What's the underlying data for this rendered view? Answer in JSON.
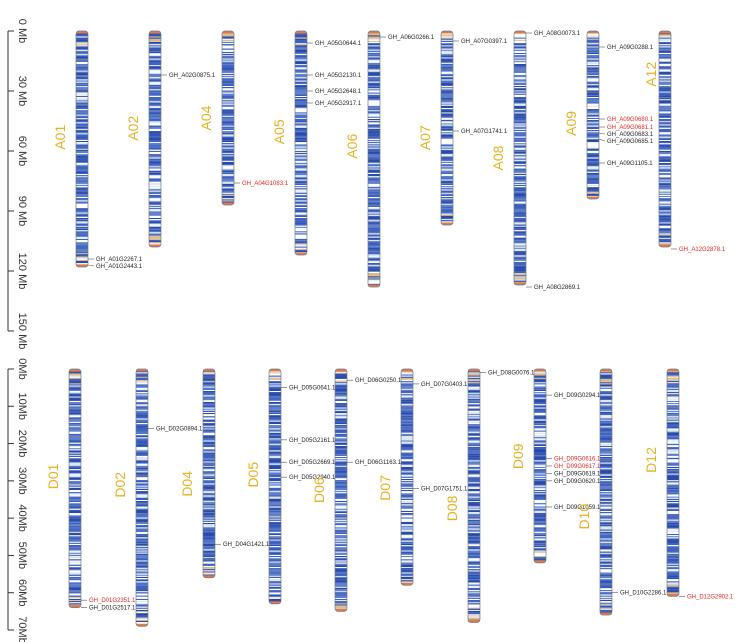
{
  "colors": {
    "label": "#e8b021",
    "highlight": "#e8231d",
    "normal": "#222222",
    "axis": "#333333"
  },
  "top_panel": {
    "axis": {
      "unit": "Mb",
      "ticks": [
        0,
        30,
        60,
        90,
        120,
        150
      ],
      "labels": [
        "0 Mb",
        "30 Mb",
        "60 Mb",
        "90 Mb",
        "120 Mb",
        "150 Mb"
      ]
    },
    "chromosomes": [
      {
        "name": "A01",
        "length": 118,
        "genes": [
          {
            "id": "GH_A01G2267.1",
            "pos": 114,
            "hi": false
          },
          {
            "id": "GH_A01G2443.1",
            "pos": 117,
            "hi": false
          }
        ]
      },
      {
        "name": "A02",
        "length": 108,
        "genes": [
          {
            "id": "GH_A02G0875.1",
            "pos": 22,
            "hi": false
          }
        ]
      },
      {
        "name": "A04",
        "length": 87,
        "genes": [
          {
            "id": "GH_A04G1083.1",
            "pos": 76,
            "hi": true
          }
        ]
      },
      {
        "name": "A05",
        "length": 112,
        "genes": [
          {
            "id": "GH_A05G0644.1",
            "pos": 6,
            "hi": false
          },
          {
            "id": "GH_A05G2130.1",
            "pos": 22,
            "hi": false
          },
          {
            "id": "GH_A05G2648.1",
            "pos": 30,
            "hi": false
          },
          {
            "id": "GH_A05G2917.1",
            "pos": 36,
            "hi": false
          }
        ]
      },
      {
        "name": "A06",
        "length": 128,
        "genes": [
          {
            "id": "GH_A06G0266.1",
            "pos": 3,
            "hi": false
          }
        ]
      },
      {
        "name": "A07",
        "length": 97,
        "genes": [
          {
            "id": "GH_A07G0397.1",
            "pos": 5,
            "hi": false
          },
          {
            "id": "GH_A07G1741.1",
            "pos": 50,
            "hi": false
          }
        ]
      },
      {
        "name": "A08",
        "length": 127,
        "genes": [
          {
            "id": "GH_A08G0073.1",
            "pos": 1,
            "hi": false
          },
          {
            "id": "GH_A08G2869.1",
            "pos": 128,
            "hi": false
          }
        ]
      },
      {
        "name": "A09",
        "length": 84,
        "genes": [
          {
            "id": "GH_A09G0288.1",
            "pos": 8,
            "hi": false
          },
          {
            "id": "GH_A09G0680.1",
            "pos": 44,
            "hi": true
          },
          {
            "id": "GH_A09G0681.1",
            "pos": 48,
            "hi": true
          },
          {
            "id": "GH_A09G0683.1",
            "pos": 51,
            "hi": false
          },
          {
            "id": "GH_A09G0685.1",
            "pos": 54,
            "hi": false
          },
          {
            "id": "GH_A09G1105.1",
            "pos": 66,
            "hi": false
          }
        ]
      },
      {
        "name": "A12",
        "length": 108,
        "genes": [
          {
            "id": "GH_A12G2878.1",
            "pos": 109,
            "hi": true
          }
        ]
      }
    ]
  },
  "bottom_panel": {
    "axis": {
      "unit": "Mb",
      "ticks": [
        0,
        10,
        20,
        30,
        40,
        50,
        60,
        70
      ],
      "labels": [
        "0Mb",
        "10Mb",
        "20Mb",
        "30Mb",
        "40Mb",
        "50Mb",
        "60Mb",
        "70Mb"
      ]
    },
    "chromosomes": [
      {
        "name": "D01",
        "length": 64,
        "genes": [
          {
            "id": "GH_D01G2351.1",
            "pos": 62,
            "hi": true
          },
          {
            "id": "GH_D01G2517.1",
            "pos": 64,
            "hi": false
          }
        ]
      },
      {
        "name": "D02",
        "length": 69,
        "genes": [
          {
            "id": "GH_D02G0894.1",
            "pos": 16,
            "hi": false
          }
        ]
      },
      {
        "name": "D04",
        "length": 56,
        "genes": [
          {
            "id": "GH_D04G1421.1",
            "pos": 47,
            "hi": false
          }
        ]
      },
      {
        "name": "D05",
        "length": 63,
        "genes": [
          {
            "id": "GH_D05G0641.1",
            "pos": 5,
            "hi": false
          },
          {
            "id": "GH_D05G2161.1",
            "pos": 19,
            "hi": false
          },
          {
            "id": "GH_D05G2669.1",
            "pos": 25,
            "hi": false
          },
          {
            "id": "GH_D05G2940.1",
            "pos": 29,
            "hi": false
          }
        ]
      },
      {
        "name": "D06",
        "length": 65,
        "genes": [
          {
            "id": "GH_D06G0250.1",
            "pos": 3,
            "hi": false
          },
          {
            "id": "GH_D06G1163.1",
            "pos": 25,
            "hi": false
          }
        ]
      },
      {
        "name": "D07",
        "length": 58,
        "genes": [
          {
            "id": "GH_D07G0403.1",
            "pos": 4,
            "hi": false
          },
          {
            "id": "GH_D07G1751.1",
            "pos": 32,
            "hi": false
          }
        ]
      },
      {
        "name": "D08",
        "length": 68,
        "genes": [
          {
            "id": "GH_D08G0076.1",
            "pos": 1,
            "hi": false
          }
        ]
      },
      {
        "name": "D09",
        "length": 52,
        "genes": [
          {
            "id": "GH_D09G0294.1",
            "pos": 7,
            "hi": false
          },
          {
            "id": "GH_D09G0616.1",
            "pos": 24,
            "hi": true
          },
          {
            "id": "GH_D09G0617.1",
            "pos": 26,
            "hi": true
          },
          {
            "id": "GH_D09G0619.1",
            "pos": 28,
            "hi": false
          },
          {
            "id": "GH_D09G0620.1",
            "pos": 30,
            "hi": false
          },
          {
            "id": "GH_D09G1059.1",
            "pos": 37,
            "hi": false
          }
        ]
      },
      {
        "name": "D10",
        "length": 66,
        "genes": [
          {
            "id": "GH_D10G2286.1",
            "pos": 60,
            "hi": false
          }
        ]
      },
      {
        "name": "D12",
        "length": 61,
        "genes": [
          {
            "id": "GH_D12G2902.1",
            "pos": 61,
            "hi": true
          }
        ]
      }
    ]
  }
}
